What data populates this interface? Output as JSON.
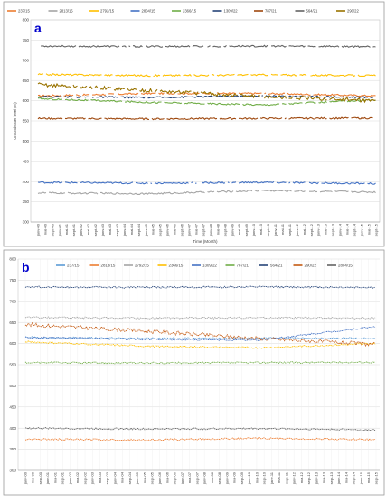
{
  "chart_data": [
    {
      "type": "line",
      "panel_label": "a",
      "xlabel": "Time (Month)",
      "ylabel": "Groundwater level (m)",
      "ylim": [
        300,
        800
      ],
      "yticks": [
        300,
        350,
        400,
        450,
        500,
        550,
        600,
        650,
        700,
        750,
        800
      ],
      "categories": [
        "janv-00",
        "mai-00",
        "sept-00",
        "janv-01",
        "mai-01",
        "sept-01",
        "janv-02",
        "mai-02",
        "sept-02",
        "janv-03",
        "mai-03",
        "sept-03",
        "janv-04",
        "mai-04",
        "sept-04",
        "janv-05",
        "mai-05",
        "sept-05",
        "janv-06",
        "mai-06",
        "sept-06",
        "janv-07",
        "mai-07",
        "sept-07",
        "janv-08",
        "mai-08",
        "sept-08",
        "janv-09",
        "mai-09",
        "sept-09",
        "janv-10",
        "mai-10",
        "sept-10",
        "janv-11",
        "mai-11",
        "sept-11",
        "janv-12",
        "mai-12",
        "sept-12",
        "janv-13",
        "mai-13",
        "sept-13",
        "janv-14",
        "mai-14",
        "sept-14",
        "janv-15",
        "mai-15",
        "sept-15"
      ],
      "grid": true,
      "legend_position": "top",
      "series": [
        {
          "name": "237/15",
          "color": "#ed7d31",
          "level": [
            612,
            618,
            618,
            612
          ]
        },
        {
          "name": "2813/15",
          "color": "#a5a5a5",
          "level": [
            372,
            370,
            378,
            374
          ]
        },
        {
          "name": "2792/15",
          "color": "#ffc000",
          "level": [
            665,
            662,
            664,
            662
          ]
        },
        {
          "name": "2804/15",
          "color": "#4472c4",
          "level": [
            398,
            396,
            398,
            395
          ]
        },
        {
          "name": "2366/15",
          "color": "#70ad47",
          "level": [
            605,
            596,
            590,
            602
          ]
        },
        {
          "name": "1309/22",
          "color": "#264478",
          "level": [
            610,
            608,
            612,
            608
          ]
        },
        {
          "name": "787/21",
          "color": "#9e480e",
          "level": [
            556,
            555,
            556,
            557
          ]
        },
        {
          "name": "564/21",
          "color": "#636363",
          "level": [
            735,
            734,
            735,
            734
          ]
        },
        {
          "name": "290/22",
          "color": "#997300",
          "level": [
            640,
            625,
            610,
            600
          ]
        }
      ]
    },
    {
      "type": "line",
      "panel_label": "b",
      "ylim": [
        300,
        800
      ],
      "yticks": [
        300,
        350,
        400,
        450,
        500,
        550,
        600,
        650,
        700,
        750,
        800
      ],
      "categories": [
        "janv-00",
        "mai-00",
        "sept-00",
        "janv-01",
        "mai-01",
        "sept-01",
        "janv-02",
        "mai-02",
        "sept-02",
        "janv-03",
        "mai-03",
        "sept-03",
        "janv-04",
        "mai-04",
        "sept-04",
        "janv-05",
        "mai-05",
        "sept-05",
        "janv-06",
        "mai-06",
        "sept-06",
        "janv-07",
        "mai-07",
        "sept-07",
        "janv-08",
        "mai-08",
        "sept-08",
        "janv-09",
        "mai-09",
        "sept-09",
        "janv-10",
        "mai-10",
        "sept-10",
        "janv-11",
        "mai-11",
        "sept-11",
        "janv-12",
        "mai-12",
        "sept-12",
        "janv-13",
        "mai-13",
        "sept-13",
        "janv-14",
        "mai-14",
        "sept-14",
        "janv-15",
        "mai-15",
        "sept-15"
      ],
      "grid": true,
      "legend_position": "top",
      "series": [
        {
          "name": "237/15",
          "color": "#5b9bd5",
          "level": [
            615,
            612,
            613,
            612
          ]
        },
        {
          "name": "2813/15",
          "color": "#ed7d31",
          "level": [
            374,
            372,
            376,
            373
          ]
        },
        {
          "name": "2792/15",
          "color": "#a5a5a5",
          "level": [
            662,
            660,
            661,
            660
          ]
        },
        {
          "name": "2366/15",
          "color": "#ffc000",
          "level": [
            604,
            594,
            590,
            600
          ]
        },
        {
          "name": "1309/22",
          "color": "#4472c4",
          "level": [
            615,
            610,
            608,
            640
          ]
        },
        {
          "name": "787/21",
          "color": "#70ad47",
          "level": [
            555,
            554,
            555,
            556
          ]
        },
        {
          "name": "564/21",
          "color": "#264478",
          "level": [
            734,
            733,
            734,
            733
          ]
        },
        {
          "name": "290/22",
          "color": "#c55a11",
          "level": [
            645,
            630,
            612,
            598
          ]
        },
        {
          "name": "2804/15",
          "color": "#636363",
          "level": [
            400,
            398,
            399,
            396
          ]
        }
      ]
    }
  ]
}
